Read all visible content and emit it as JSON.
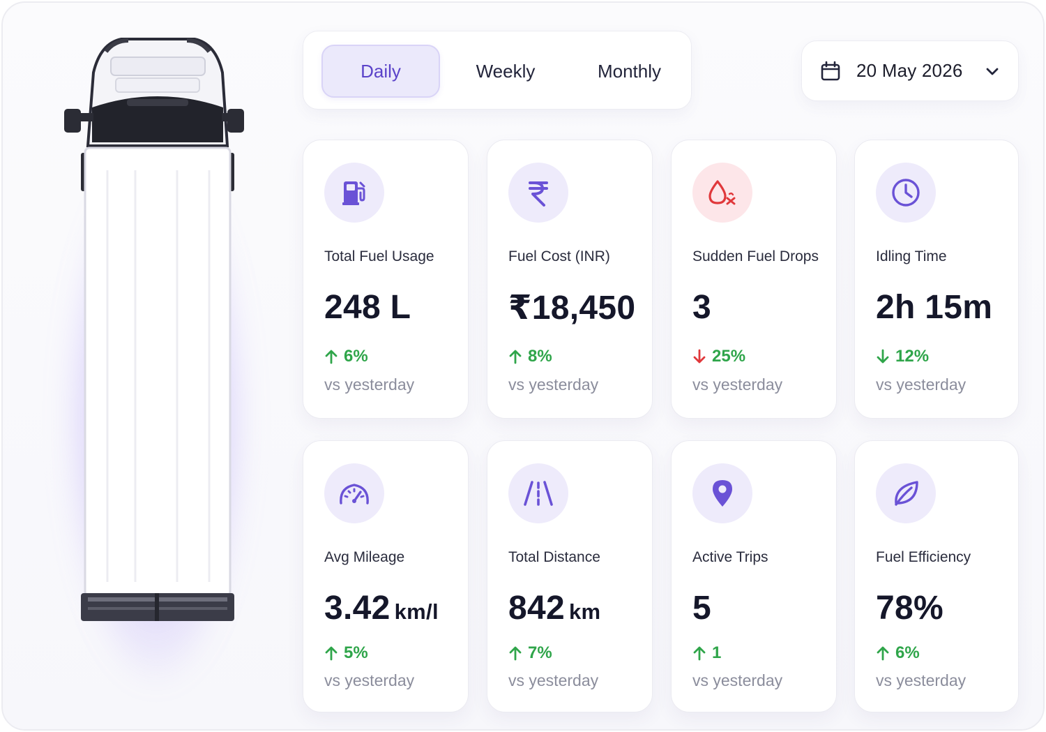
{
  "tabs": {
    "items": [
      {
        "label": "Daily",
        "active": true
      },
      {
        "label": "Weekly",
        "active": false
      },
      {
        "label": "Monthly",
        "active": false
      }
    ]
  },
  "date_picker": {
    "value": "20 May 2026",
    "icon": "calendar-icon"
  },
  "colors": {
    "accent": "#5b43c9",
    "accent_soft": "#eeebfb",
    "positive": "#2fa54a",
    "negative": "#e0383b",
    "alert_soft": "#fde6e9"
  },
  "metrics": [
    {
      "icon": "fuel-pump-icon",
      "label": "Total Fuel Usage",
      "value": "248 L",
      "unit": "",
      "direction": "up",
      "change": "6%",
      "caption": "vs yesterday"
    },
    {
      "icon": "rupee-icon",
      "label": "Fuel Cost (INR)",
      "value": "₹18,450",
      "unit": "",
      "direction": "up",
      "change": "8%",
      "caption": "vs yesterday"
    },
    {
      "icon": "fuel-drop-icon",
      "label": "Sudden Fuel Drops",
      "value": "3",
      "unit": "",
      "direction": "down",
      "change": "25%",
      "caption": "vs yesterday"
    },
    {
      "icon": "clock-icon",
      "label": "Idling Time",
      "value": "2h 15m",
      "unit": "",
      "direction": "down",
      "change": "12%",
      "caption": "vs yesterday"
    },
    {
      "icon": "speedometer-icon",
      "label": "Avg Mileage",
      "value": "3.42",
      "unit": "km/l",
      "direction": "up",
      "change": "5%",
      "caption": "vs yesterday"
    },
    {
      "icon": "road-icon",
      "label": "Total Distance",
      "value": "842",
      "unit": "km",
      "direction": "up",
      "change": "7%",
      "caption": "vs yesterday"
    },
    {
      "icon": "location-pin-icon",
      "label": "Active Trips",
      "value": "5",
      "unit": "",
      "direction": "up",
      "change": "1",
      "caption": "vs yesterday"
    },
    {
      "icon": "leaf-icon",
      "label": "Fuel Efficiency",
      "value": "78%",
      "unit": "",
      "direction": "up",
      "change": "6%",
      "caption": "vs yesterday"
    }
  ]
}
